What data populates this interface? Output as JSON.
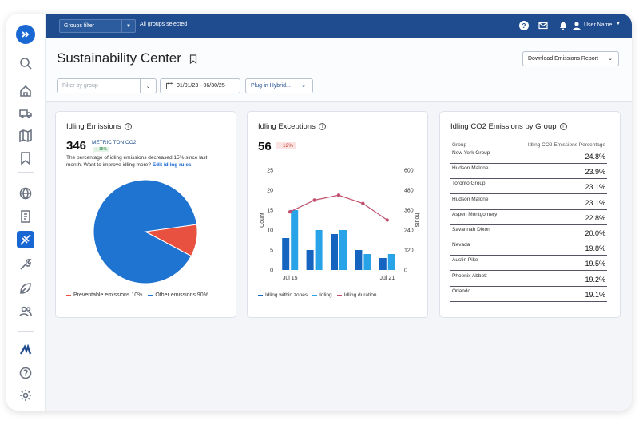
{
  "topbar": {
    "groups_filter_label": "Groups filter",
    "groups_selected_text": "All groups selected",
    "user_name": "User Name"
  },
  "page": {
    "title": "Sustainability Center",
    "download_button": "Download Emissions Report",
    "filter_group_placeholder": "Filter by group",
    "date_range": "01/01/23 - 06/30/25",
    "vehicle_type": "Plug-in Hybrid..."
  },
  "idling_emissions": {
    "title": "Idling Emissions",
    "value": "346",
    "unit": "METRIC TON CO2",
    "change_badge": "↓ 15%",
    "description": "The percentage of idling emissions decreased 15% since last month. Want to improve idling more?",
    "link": "Edit idling rules",
    "legend_preventable": "Preventable emissions 10%",
    "legend_other": "Other emissions 90%"
  },
  "idling_exceptions": {
    "title": "Idling Exceptions",
    "value": "56",
    "change_badge": "↑ 12%",
    "legend_zones": "Idling within zones",
    "legend_idling": "Idling",
    "legend_duration": "Idling duration"
  },
  "co2_table": {
    "title": "Idling CO2 Emissions by Group",
    "col_group": "Group",
    "col_pct": "Idling CO2 Emissions Percentage",
    "rows": [
      {
        "group": "New York Group",
        "pct": "24.8%"
      },
      {
        "group": "Hudson Malone",
        "pct": "23.9%"
      },
      {
        "group": "Toronto Group",
        "pct": "23.1%"
      },
      {
        "group": "Hudson Malone",
        "pct": "23.1%"
      },
      {
        "group": "Aspen Montgomery",
        "pct": "22.8%"
      },
      {
        "group": "Savannah Dixon",
        "pct": "20.0%"
      },
      {
        "group": "Nevada",
        "pct": "19.8%"
      },
      {
        "group": "Austin Pike",
        "pct": "19.5%"
      },
      {
        "group": "Phoenix Abbott",
        "pct": "19.2%"
      },
      {
        "group": "Orlando",
        "pct": "19.1%"
      }
    ]
  },
  "chart_data": [
    {
      "type": "pie",
      "title": "",
      "categories": [
        "Preventable emissions",
        "Other emissions"
      ],
      "values": [
        10,
        90
      ],
      "colors": [
        "#e8503f",
        "#1f73d1"
      ]
    },
    {
      "type": "bar",
      "title": "",
      "ylabel": "Count",
      "y2label": "hours",
      "ylim": [
        0,
        25
      ],
      "y2lim": [
        0,
        600
      ],
      "yticks": [
        "0",
        "5",
        "10",
        "15",
        "20",
        "25"
      ],
      "y2ticks": [
        "0",
        "120",
        "240",
        "360",
        "480",
        "600"
      ],
      "xticks": [
        "Jul 15",
        "Jul 21"
      ],
      "series": [
        {
          "name": "Idling within zones",
          "color": "#1565c0",
          "values": [
            8,
            5,
            9,
            5,
            3
          ]
        },
        {
          "name": "Idling",
          "color": "#29a3e8",
          "values": [
            15,
            10,
            10,
            4,
            4
          ]
        },
        {
          "name": "Idling duration",
          "color": "#c0506e",
          "type": "line",
          "axis": "right",
          "values": [
            350,
            420,
            450,
            400,
            300
          ]
        }
      ]
    }
  ],
  "colors": {
    "topbar": "#1f4c8f",
    "accent": "#1967d2",
    "sidebar_active": "#1967d2"
  }
}
